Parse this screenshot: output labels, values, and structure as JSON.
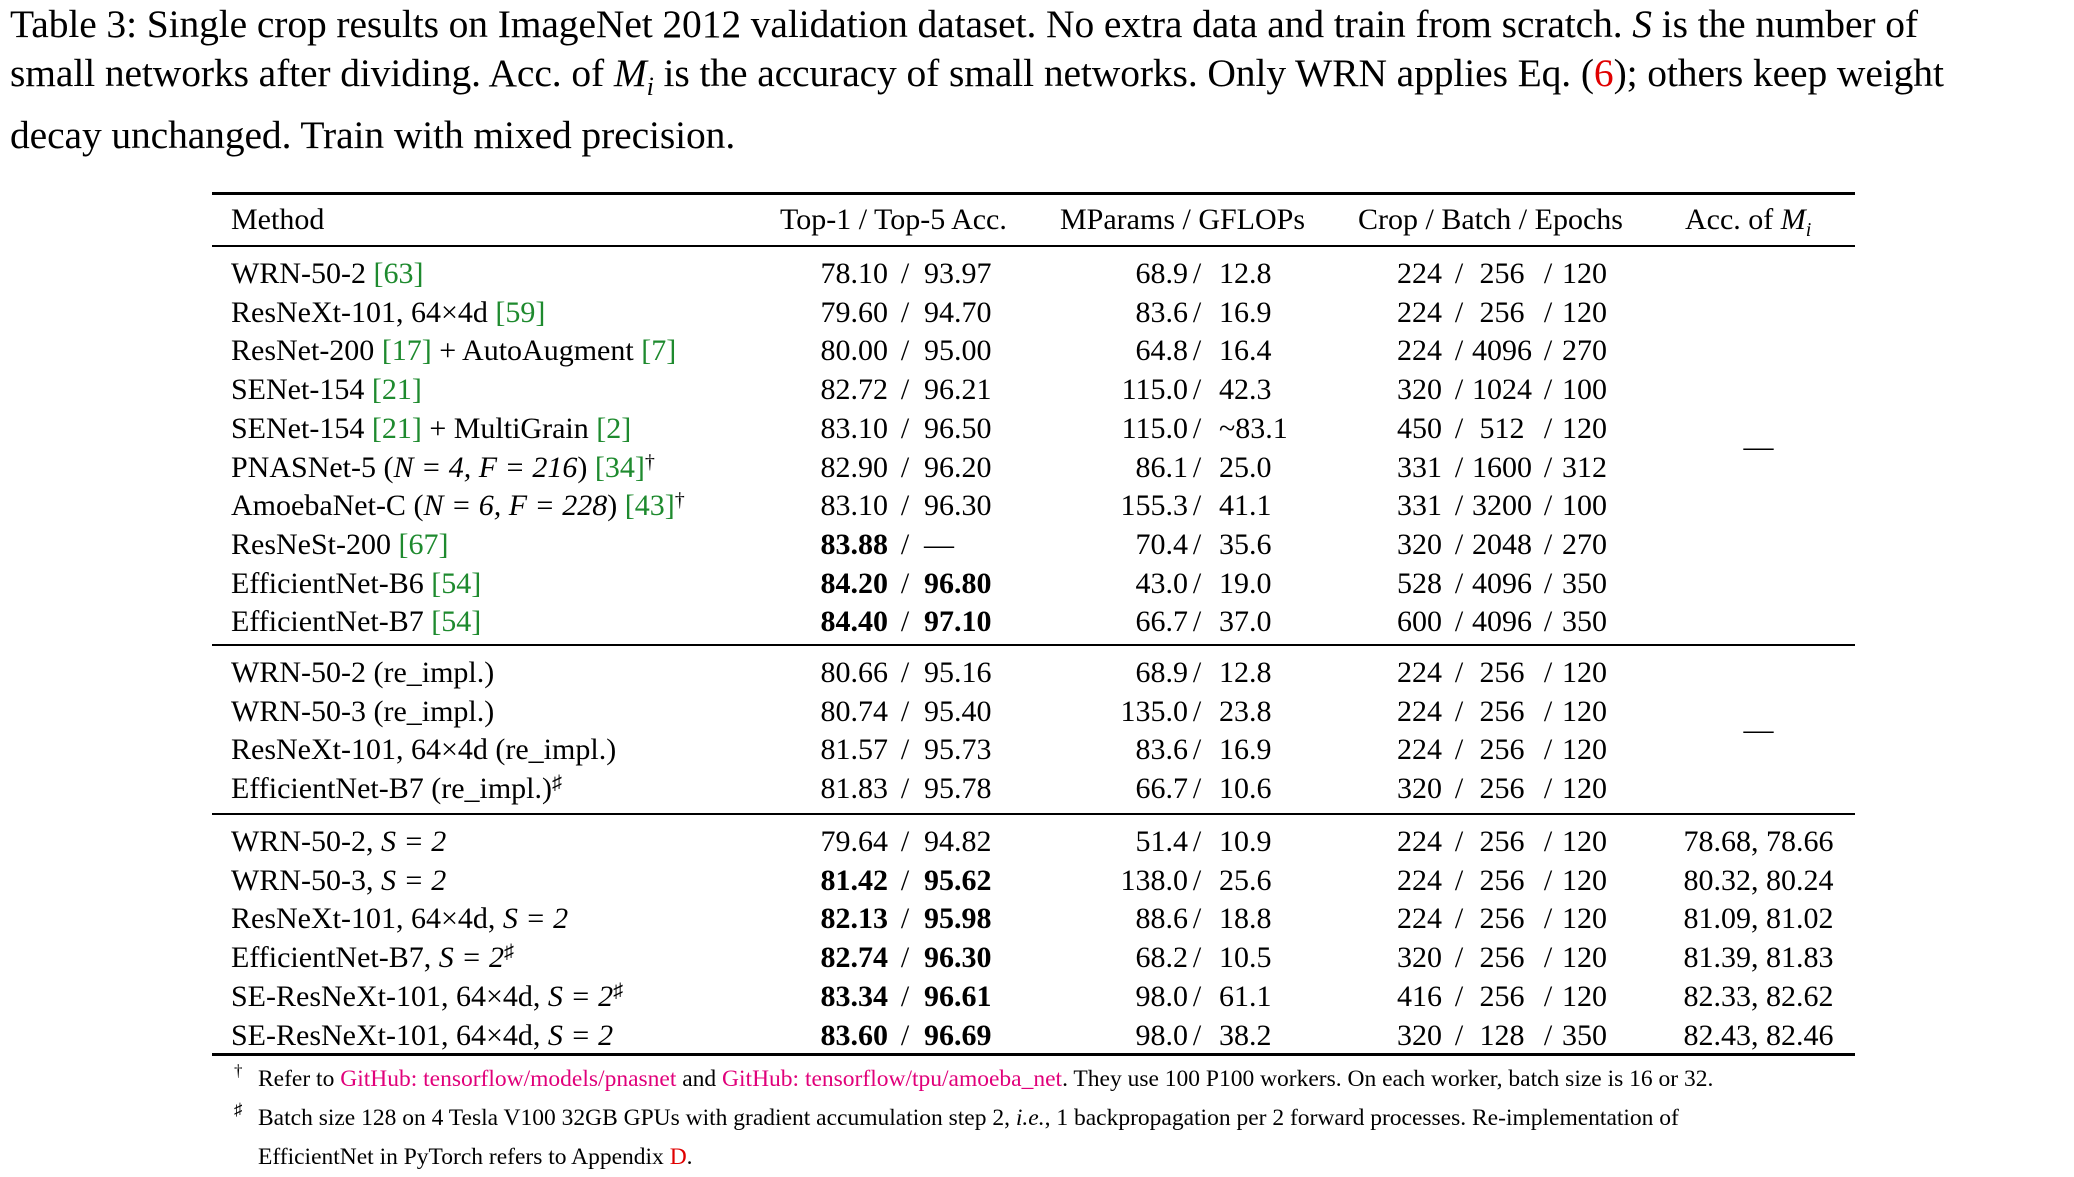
{
  "caption": {
    "part1": "Table 3: Single crop results on ImageNet 2012 validation dataset. No extra data and train from scratch. ",
    "S": "S",
    "part2": " is the number of",
    "line2a": "small networks after dividing. Acc. of ",
    "Mi": "M",
    "Mi_sub": "i",
    "line2b": " is the accuracy of small networks. Only WRN applies Eq. (",
    "eq_ref": "6",
    "line2c": "); others keep weight",
    "line3": "decay unchanged. Train with mixed precision."
  },
  "table": {
    "headers": {
      "method": "Method",
      "top": "Top-1 / Top-5 Acc.",
      "params": "MParams / GFLOPs",
      "crop": "Crop / Batch / Epochs",
      "acc_prefix": "Acc. of ",
      "acc_M": "M",
      "acc_sub": "i"
    },
    "slash": "/",
    "dash": "—",
    "group1": [
      {
        "name": "WRN-50-2 ",
        "ref": "[63]",
        "suffix": "",
        "top1": "78.10",
        "top5": "93.97",
        "mp": "68.9",
        "gf": "12.8",
        "crop": "224",
        "batch": "256",
        "ep": "120"
      },
      {
        "name": "ResNeXt-101, 64×4d ",
        "ref": "[59]",
        "suffix": "",
        "top1": "79.60",
        "top5": "94.70",
        "mp": "83.6",
        "gf": "16.9",
        "crop": "224",
        "batch": "256",
        "ep": "120"
      },
      {
        "name": "ResNet-200 ",
        "ref": "[17]",
        "suffix": " + AutoAugment ",
        "ref2": "[7]",
        "top1": "80.00",
        "top5": "95.00",
        "mp": "64.8",
        "gf": "16.4",
        "crop": "224",
        "batch": "4096",
        "ep": "270"
      },
      {
        "name": "SENet-154 ",
        "ref": "[21]",
        "suffix": "",
        "top1": "82.72",
        "top5": "96.21",
        "mp": "115.0",
        "gf": "42.3",
        "crop": "320",
        "batch": "1024",
        "ep": "100"
      },
      {
        "name": "SENet-154 ",
        "ref": "[21]",
        "suffix": " + MultiGrain ",
        "ref2": "[2]",
        "top1": "83.10",
        "top5": "96.50",
        "mp": "115.0",
        "gf": "~83.1",
        "crop": "450",
        "batch": "512",
        "ep": "120"
      },
      {
        "name": "PNASNet-5 (",
        "math": "N = 4, F = 216",
        "after": ") ",
        "ref": "[34]",
        "sup": "†",
        "top1": "82.90",
        "top5": "96.20",
        "mp": "86.1",
        "gf": "25.0",
        "crop": "331",
        "batch": "1600",
        "ep": "312"
      },
      {
        "name": "AmoebaNet-C (",
        "math": "N = 6, F = 228",
        "after": ") ",
        "ref": "[43]",
        "sup": "†",
        "top1": "83.10",
        "top5": "96.30",
        "mp": "155.3",
        "gf": "41.1",
        "crop": "331",
        "batch": "3200",
        "ep": "100"
      },
      {
        "name": "ResNeSt-200 ",
        "ref": "[67]",
        "suffix": "",
        "top1": "83.88",
        "top5": "—",
        "mp": "70.4",
        "gf": "35.6",
        "crop": "320",
        "batch": "2048",
        "ep": "270",
        "bold1": true
      },
      {
        "name": "EfficientNet-B6 ",
        "ref": "[54]",
        "suffix": "",
        "top1": "84.20",
        "top5": "96.80",
        "mp": "43.0",
        "gf": "19.0",
        "crop": "528",
        "batch": "4096",
        "ep": "350",
        "bold1": true,
        "bold5": true
      },
      {
        "name": "EfficientNet-B7 ",
        "ref": "[54]",
        "suffix": "",
        "top1": "84.40",
        "top5": "97.10",
        "mp": "66.7",
        "gf": "37.0",
        "crop": "600",
        "batch": "4096",
        "ep": "350",
        "bold1": true,
        "bold5": true
      }
    ],
    "group2": [
      {
        "name": "WRN-50-2 (re_impl.)",
        "top1": "80.66",
        "top5": "95.16",
        "mp": "68.9",
        "gf": "12.8",
        "crop": "224",
        "batch": "256",
        "ep": "120"
      },
      {
        "name": "WRN-50-3 (re_impl.)",
        "top1": "80.74",
        "top5": "95.40",
        "mp": "135.0",
        "gf": "23.8",
        "crop": "224",
        "batch": "256",
        "ep": "120"
      },
      {
        "name": "ResNeXt-101, 64×4d (re_impl.)",
        "top1": "81.57",
        "top5": "95.73",
        "mp": "83.6",
        "gf": "16.9",
        "crop": "224",
        "batch": "256",
        "ep": "120"
      },
      {
        "name": "EfficientNet-B7 (re_impl.)",
        "sup": "♯",
        "top1": "81.83",
        "top5": "95.78",
        "mp": "66.7",
        "gf": "10.6",
        "crop": "320",
        "batch": "256",
        "ep": "120"
      }
    ],
    "group3": [
      {
        "name": "WRN-50-2, ",
        "math": "S = 2",
        "top1": "79.64",
        "top5": "94.82",
        "mp": "51.4",
        "gf": "10.9",
        "crop": "224",
        "batch": "256",
        "ep": "120",
        "acc": "78.68, 78.66"
      },
      {
        "name": "WRN-50-3, ",
        "math": "S = 2",
        "top1": "81.42",
        "top5": "95.62",
        "mp": "138.0",
        "gf": "25.6",
        "crop": "224",
        "batch": "256",
        "ep": "120",
        "acc": "80.32, 80.24",
        "bold1": true,
        "bold5": true
      },
      {
        "name": "ResNeXt-101, 64×4d, ",
        "math": "S = 2",
        "top1": "82.13",
        "top5": "95.98",
        "mp": "88.6",
        "gf": "18.8",
        "crop": "224",
        "batch": "256",
        "ep": "120",
        "acc": "81.09, 81.02",
        "bold1": true,
        "bold5": true
      },
      {
        "name": "EfficientNet-B7, ",
        "math": "S = 2",
        "sup": "♯",
        "top1": "82.74",
        "top5": "96.30",
        "mp": "68.2",
        "gf": "10.5",
        "crop": "320",
        "batch": "256",
        "ep": "120",
        "acc": "81.39, 81.83",
        "bold1": true,
        "bold5": true
      },
      {
        "name": "SE-ResNeXt-101, 64×4d, ",
        "math": "S = 2",
        "sup": "♯",
        "top1": "83.34",
        "top5": "96.61",
        "mp": "98.0",
        "gf": "61.1",
        "crop": "416",
        "batch": "256",
        "ep": "120",
        "acc": "82.33, 82.62",
        "bold1": true,
        "bold5": true
      },
      {
        "name": "SE-ResNeXt-101, 64×4d, ",
        "math": "S = 2",
        "top1": "83.60",
        "top5": "96.69",
        "mp": "98.0",
        "gf": "38.2",
        "crop": "320",
        "batch": "128",
        "ep": "350",
        "acc": "82.43, 82.46",
        "bold1": true,
        "bold5": true
      }
    ]
  },
  "footnotes": {
    "fn1_mark": "†",
    "fn1_a": "Refer to ",
    "fn1_link1": "GitHub: tensorflow/models/pnasnet",
    "fn1_b": " and ",
    "fn1_link2": "GitHub: tensorflow/tpu/amoeba_net",
    "fn1_c": ". They use 100 P100 workers. On each worker, batch size is 16 or 32.",
    "fn2_mark": "♯",
    "fn2_a": "Batch size 128 on 4 Tesla V100 32GB GPUs with gradient accumulation step 2, ",
    "fn2_ie": "i.e.",
    "fn2_b": ", 1 backpropagation per 2 forward processes. Re-implementation of",
    "fn2_line2": "EfficientNet in PyTorch refers to Appendix ",
    "fn2_app": "D",
    "fn2_end": "."
  }
}
